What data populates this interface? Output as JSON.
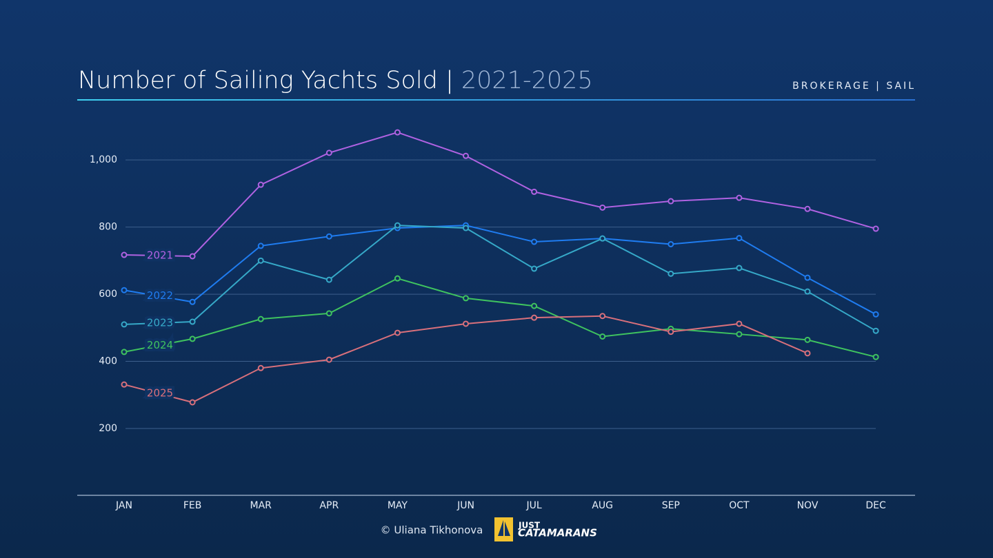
{
  "chart_data": {
    "type": "line",
    "title": "Number of Sailing Yachts Sold |",
    "subtitle": "2021-2025",
    "tag": "BROKERAGE | SAIL",
    "categories": [
      "JAN",
      "FEB",
      "MAR",
      "APR",
      "MAY",
      "JUN",
      "JUL",
      "AUG",
      "SEP",
      "OCT",
      "NOV",
      "DEC"
    ],
    "series": [
      {
        "name": "2021",
        "color": "#b062e2",
        "values": [
          717,
          713,
          926,
          1021,
          1082,
          1012,
          905,
          858,
          877,
          887,
          854,
          795
        ]
      },
      {
        "name": "2022",
        "color": "#1f7cf0",
        "values": [
          612,
          577,
          744,
          772,
          797,
          805,
          756,
          766,
          749,
          767,
          649,
          540
        ]
      },
      {
        "name": "2023",
        "color": "#36a9c8",
        "values": [
          510,
          518,
          700,
          643,
          805,
          797,
          676,
          766,
          661,
          678,
          608,
          491
        ]
      },
      {
        "name": "2024",
        "color": "#3fc35f",
        "values": [
          428,
          467,
          526,
          543,
          647,
          588,
          565,
          474,
          497,
          481,
          464,
          413
        ]
      },
      {
        "name": "2025",
        "color": "#d9707b",
        "values": [
          331,
          278,
          380,
          405,
          485,
          512,
          530,
          535,
          488,
          512,
          424,
          null
        ]
      }
    ],
    "ylim": [
      0,
      1150
    ],
    "yticks": [
      200,
      400,
      600,
      800,
      {
        "value": 1000,
        "label": "1,000"
      }
    ],
    "grid": true
  },
  "footer": {
    "credit": "© Uliana Tikhonova",
    "logo_line1": "JUST",
    "logo_line2": "CATAMARANS"
  }
}
